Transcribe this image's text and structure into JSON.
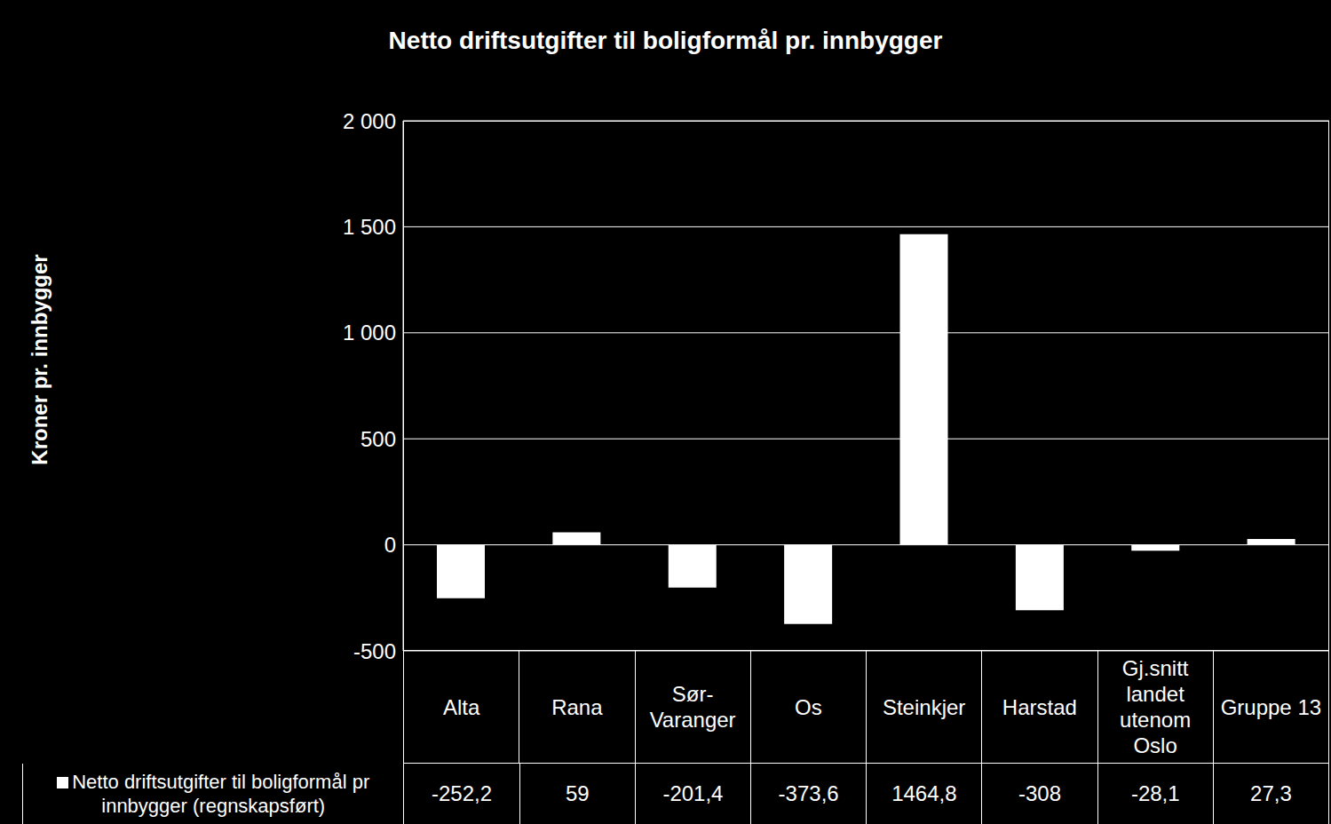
{
  "chart_data": {
    "type": "bar",
    "title": "Netto driftsutgifter til boligformål pr. innbygger",
    "y_label": "Kroner pr. innbygger",
    "categories": [
      "Alta",
      "Rana",
      "Sør-Varanger",
      "Os",
      "Steinkjer",
      "Harstad",
      "Gj.snitt landet utenom Oslo",
      "Gruppe 13"
    ],
    "series": [
      {
        "name": "Netto driftsutgifter til boligformål pr innbygger (regnskapsført)",
        "color": "#ffffff",
        "values": [
          -252.2,
          59,
          -201.4,
          -373.6,
          1464.8,
          -308,
          -28.1,
          27.3
        ],
        "value_labels": [
          "-252,2",
          "59",
          "-201,4",
          "-373,6",
          "1464,8",
          "-308",
          "-28,1",
          "27,3"
        ]
      }
    ],
    "ylim": [
      -500,
      2000
    ],
    "yticks": [
      {
        "value": 2000,
        "label": "2 000"
      },
      {
        "value": 1500,
        "label": "1 500"
      },
      {
        "value": 1000,
        "label": "1 000"
      },
      500,
      0,
      -500
    ],
    "grid": true
  }
}
